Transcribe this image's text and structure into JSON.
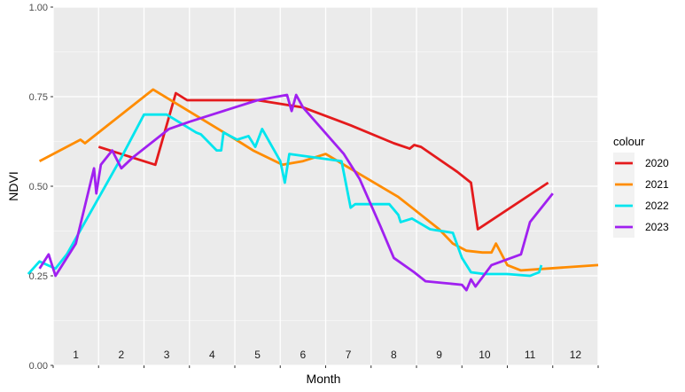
{
  "chart_data": {
    "type": "line",
    "title": "",
    "xlabel": "Month",
    "ylabel": "NDVI",
    "xlim": [
      0,
      12
    ],
    "ylim": [
      0,
      1
    ],
    "y_ticks": [
      "0.00",
      "0.25",
      "0.50",
      "0.75",
      "1.00"
    ],
    "y_tick_values": [
      0,
      0.25,
      0.5,
      0.75,
      1.0
    ],
    "month_labels": [
      "1",
      "2",
      "3",
      "4",
      "5",
      "6",
      "7",
      "8",
      "9",
      "10",
      "11",
      "12"
    ],
    "grid": true,
    "legend": {
      "title": "colour",
      "position": "right"
    },
    "series": [
      {
        "name": "2020",
        "color": "#E41A1C",
        "x": [
          1.0,
          2.25,
          2.7,
          2.95,
          3.2,
          4.5,
          5.5,
          6.55,
          7.5,
          7.85,
          7.95,
          8.1,
          8.9,
          9.2,
          9.35,
          10.9
        ],
        "y": [
          0.61,
          0.56,
          0.76,
          0.74,
          0.74,
          0.74,
          0.72,
          0.67,
          0.62,
          0.605,
          0.615,
          0.61,
          0.54,
          0.51,
          0.38,
          0.51
        ]
      },
      {
        "name": "2021",
        "color": "#FF8C00",
        "x": [
          -0.3,
          0.6,
          0.7,
          2.2,
          4.15,
          4.4,
          5.05,
          5.5,
          6.0,
          7.6,
          7.9,
          8.5,
          8.8,
          9.1,
          9.45,
          9.65,
          9.75,
          10.0,
          10.3,
          12.0
        ],
        "y": [
          0.57,
          0.63,
          0.62,
          0.77,
          0.62,
          0.6,
          0.56,
          0.57,
          0.59,
          0.47,
          0.44,
          0.38,
          0.34,
          0.32,
          0.315,
          0.315,
          0.34,
          0.28,
          0.265,
          0.28
        ]
      },
      {
        "name": "2022",
        "color": "#00E5EE",
        "x": [
          -0.55,
          -0.3,
          0.05,
          0.3,
          1.5,
          2.0,
          2.5,
          3.15,
          3.25,
          3.6,
          3.7,
          3.75,
          4.05,
          4.3,
          4.45,
          4.6,
          5.0,
          5.1,
          5.2,
          6.35,
          6.55,
          6.65,
          7.4,
          7.6,
          7.65,
          7.9,
          8.3,
          8.8,
          9.0,
          9.2,
          9.5,
          10.0,
          10.5,
          10.7,
          10.75
        ],
        "y": [
          0.255,
          0.29,
          0.27,
          0.31,
          0.58,
          0.7,
          0.7,
          0.65,
          0.645,
          0.6,
          0.6,
          0.65,
          0.63,
          0.64,
          0.61,
          0.66,
          0.57,
          0.51,
          0.59,
          0.57,
          0.44,
          0.45,
          0.45,
          0.42,
          0.4,
          0.41,
          0.38,
          0.37,
          0.3,
          0.26,
          0.255,
          0.255,
          0.25,
          0.26,
          0.28
        ]
      },
      {
        "name": "2023",
        "color": "#A020F0",
        "x": [
          -0.3,
          -0.1,
          0.05,
          0.5,
          0.9,
          0.95,
          1.05,
          1.3,
          1.5,
          1.75,
          2.55,
          3.0,
          3.5,
          4.0,
          4.5,
          5.15,
          5.25,
          5.35,
          5.5,
          6.4,
          6.75,
          7.2,
          7.5,
          7.95,
          8.2,
          8.6,
          9.0,
          9.1,
          9.2,
          9.3,
          9.65,
          10.3,
          10.5,
          11.0
        ],
        "y": [
          0.27,
          0.31,
          0.25,
          0.34,
          0.55,
          0.48,
          0.56,
          0.6,
          0.55,
          0.58,
          0.66,
          0.68,
          0.7,
          0.72,
          0.74,
          0.755,
          0.71,
          0.755,
          0.72,
          0.59,
          0.52,
          0.39,
          0.3,
          0.26,
          0.235,
          0.23,
          0.225,
          0.21,
          0.24,
          0.22,
          0.28,
          0.31,
          0.4,
          0.48
        ]
      }
    ]
  }
}
